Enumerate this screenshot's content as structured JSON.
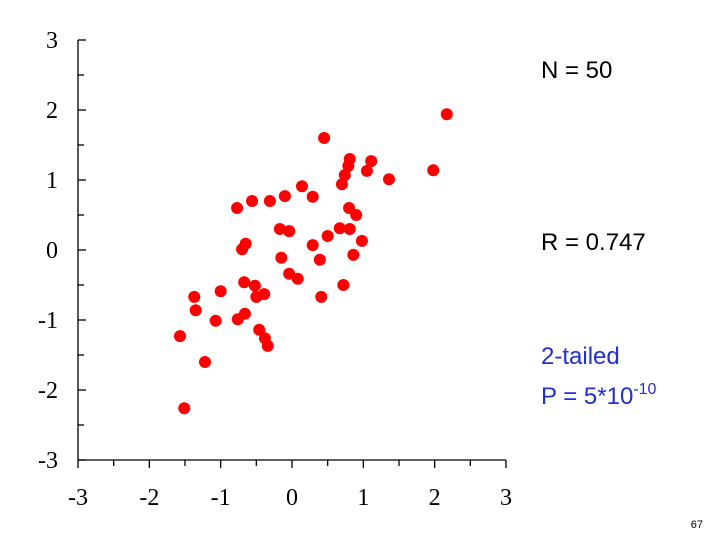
{
  "chart_data": {
    "type": "scatter",
    "x": [
      2.17,
      0.45,
      0.81,
      0.79,
      1.11,
      1.05,
      0.74,
      0.7,
      1.36,
      1.98,
      0.14,
      0.29,
      -0.1,
      -0.31,
      -0.56,
      -0.77,
      0.8,
      0.9,
      -0.17,
      -0.04,
      0.67,
      0.81,
      0.5,
      0.29,
      0.98,
      -0.65,
      -0.7,
      -0.15,
      0.39,
      0.86,
      -0.04,
      0.08,
      -0.67,
      -0.52,
      0.72,
      -1.0,
      -0.39,
      -0.5,
      -1.37,
      0.41,
      -1.35,
      -0.66,
      -0.76,
      -1.07,
      -0.46,
      -0.38,
      -1.57,
      -0.34,
      -1.22,
      -1.51
    ],
    "values": [
      1.94,
      1.6,
      1.3,
      1.2,
      1.27,
      1.13,
      1.07,
      0.94,
      1.01,
      1.14,
      0.91,
      0.76,
      0.77,
      0.7,
      0.7,
      0.6,
      0.6,
      0.5,
      0.3,
      0.27,
      0.31,
      0.3,
      0.2,
      0.07,
      0.13,
      0.09,
      0.01,
      -0.11,
      -0.14,
      -0.07,
      -0.34,
      -0.41,
      -0.46,
      -0.51,
      -0.5,
      -0.59,
      -0.63,
      -0.67,
      -0.67,
      -0.67,
      -0.86,
      -0.91,
      -0.99,
      -1.01,
      -1.14,
      -1.26,
      -1.23,
      -1.37,
      -1.6,
      -2.26
    ],
    "color": "#ff0000",
    "xlim": [
      -3,
      3
    ],
    "ylim": [
      -3,
      3
    ],
    "xticks": [
      -3,
      -2,
      -1,
      0,
      1,
      2,
      3
    ],
    "yticks": [
      -3,
      -2,
      -1,
      0,
      1,
      2,
      3
    ],
    "xminorticks": [
      -2.5,
      -1.5,
      -0.5,
      0.5,
      1.5,
      2.5
    ],
    "yminorticks": [
      -2.5,
      -1.5,
      -0.5,
      0.5,
      1.5,
      2.5
    ],
    "annotations": [
      "N = 50",
      "R = 0.747",
      "2-tailed",
      "P = 5*10",
      "-10"
    ],
    "page_number": "67"
  }
}
